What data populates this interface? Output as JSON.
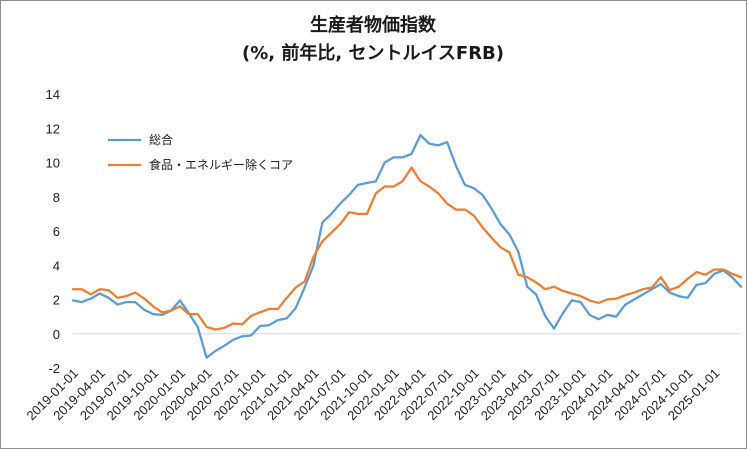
{
  "chart_data": {
    "type": "line",
    "title": "生産者物価指数",
    "subtitle": "(%, 前年比, セントルイスFRB)",
    "xlabel": "",
    "ylabel": "",
    "ylim": [
      -2,
      14
    ],
    "yticks": [
      "-2",
      "0",
      "2",
      "4",
      "6",
      "8",
      "10",
      "12",
      "14"
    ],
    "grid": false,
    "legend_position": "top-left",
    "x_tick_labels": [
      "2019-01-01",
      "2019-04-01",
      "2019-07-01",
      "2019-10-01",
      "2020-01-01",
      "2020-04-01",
      "2020-07-01",
      "2020-10-01",
      "2021-01-01",
      "2021-04-01",
      "2021-07-01",
      "2021-10-01",
      "2022-01-01",
      "2022-04-01",
      "2022-07-01",
      "2022-10-01",
      "2023-01-01",
      "2023-04-01",
      "2023-07-01",
      "2023-10-01",
      "2024-01-01",
      "2024-04-01",
      "2024-07-01",
      "2024-10-01",
      "2025-01-01"
    ],
    "x": [
      "2019-01",
      "2019-02",
      "2019-03",
      "2019-04",
      "2019-05",
      "2019-06",
      "2019-07",
      "2019-08",
      "2019-09",
      "2019-10",
      "2019-11",
      "2019-12",
      "2020-01",
      "2020-02",
      "2020-03",
      "2020-04",
      "2020-05",
      "2020-06",
      "2020-07",
      "2020-08",
      "2020-09",
      "2020-10",
      "2020-11",
      "2020-12",
      "2021-01",
      "2021-02",
      "2021-03",
      "2021-04",
      "2021-05",
      "2021-06",
      "2021-07",
      "2021-08",
      "2021-09",
      "2021-10",
      "2021-11",
      "2021-12",
      "2022-01",
      "2022-02",
      "2022-03",
      "2022-04",
      "2022-05",
      "2022-06",
      "2022-07",
      "2022-08",
      "2022-09",
      "2022-10",
      "2022-11",
      "2022-12",
      "2023-01",
      "2023-02",
      "2023-03",
      "2023-04",
      "2023-05",
      "2023-06",
      "2023-07",
      "2023-08",
      "2023-09",
      "2023-10",
      "2023-11",
      "2023-12",
      "2024-01",
      "2024-02",
      "2024-03",
      "2024-04",
      "2024-05",
      "2024-06",
      "2024-07",
      "2024-08",
      "2024-09",
      "2024-10",
      "2024-11",
      "2024-12",
      "2025-01",
      "2025-02",
      "2025-03",
      "2025-04"
    ],
    "series": [
      {
        "name": "総合",
        "color": "#5b9bd5",
        "values": [
          1.95,
          1.85,
          2.05,
          2.35,
          2.1,
          1.7,
          1.85,
          1.85,
          1.4,
          1.15,
          1.1,
          1.35,
          1.95,
          1.2,
          0.4,
          -1.4,
          -1.0,
          -0.7,
          -0.35,
          -0.15,
          -0.1,
          0.45,
          0.5,
          0.8,
          0.9,
          1.5,
          2.7,
          4.0,
          6.5,
          7.0,
          7.6,
          8.1,
          8.7,
          8.8,
          8.9,
          10.0,
          10.3,
          10.3,
          10.5,
          11.6,
          11.1,
          11.0,
          11.2,
          9.8,
          8.7,
          8.5,
          8.1,
          7.3,
          6.4,
          5.8,
          4.8,
          2.75,
          2.3,
          1.05,
          0.3,
          1.2,
          1.95,
          1.85,
          1.1,
          0.85,
          1.1,
          1.0,
          1.7,
          2.0,
          2.3,
          2.6,
          2.9,
          2.4,
          2.2,
          2.1,
          2.85,
          2.95,
          3.5,
          3.7,
          3.3,
          2.75
        ]
      },
      {
        "name": "食品・エネルギー除くコア",
        "color": "#ed7d31",
        "values": [
          2.6,
          2.6,
          2.3,
          2.6,
          2.55,
          2.1,
          2.2,
          2.4,
          2.05,
          1.6,
          1.25,
          1.35,
          1.6,
          1.15,
          1.15,
          0.4,
          0.25,
          0.35,
          0.6,
          0.55,
          1.05,
          1.25,
          1.45,
          1.45,
          2.1,
          2.7,
          3.05,
          4.5,
          5.4,
          5.9,
          6.4,
          7.1,
          7.0,
          7.0,
          8.2,
          8.6,
          8.6,
          8.9,
          9.7,
          8.9,
          8.6,
          8.2,
          7.6,
          7.25,
          7.25,
          6.9,
          6.2,
          5.6,
          5.05,
          4.75,
          3.45,
          3.3,
          3.0,
          2.6,
          2.75,
          2.5,
          2.35,
          2.2,
          1.95,
          1.8,
          2.0,
          2.05,
          2.25,
          2.4,
          2.6,
          2.7,
          3.3,
          2.55,
          2.75,
          3.2,
          3.6,
          3.45,
          3.75,
          3.75,
          3.5,
          3.3
        ]
      }
    ]
  }
}
